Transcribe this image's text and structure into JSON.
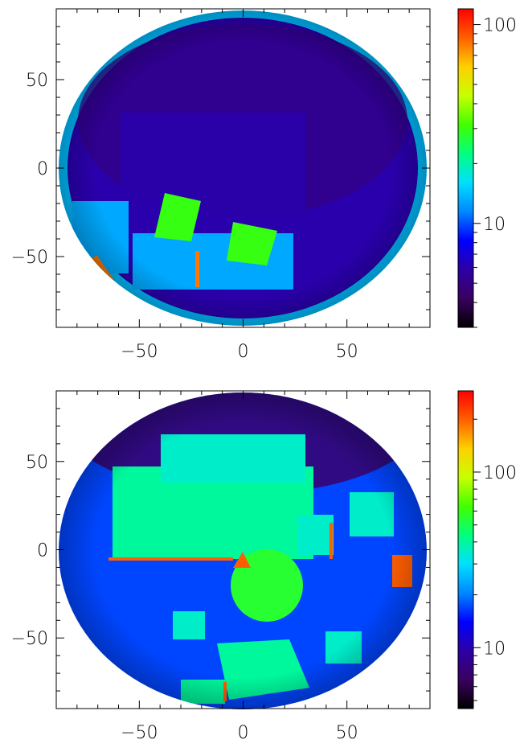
{
  "chart_data": [
    {
      "type": "heatmap",
      "description_of_content": "fisheye all-sky intensity map",
      "xlim": [
        -90,
        90
      ],
      "ylim": [
        -90,
        90
      ],
      "x_ticks": [
        -50,
        0,
        50
      ],
      "y_ticks": [
        50,
        0,
        -50
      ],
      "x_tick_labels": [
        "−50",
        "0",
        "50"
      ],
      "y_tick_labels": [
        "50",
        "0",
        "−50"
      ],
      "colorbar": {
        "scale": "log",
        "range": [
          3,
          120
        ],
        "ticks": [
          10,
          100
        ],
        "tick_labels": [
          "10",
          "100"
        ]
      },
      "colormap": [
        "#000000",
        "#3a0060",
        "#2d00a6",
        "#0000ff",
        "#0088ff",
        "#00e0ff",
        "#00ff80",
        "#40ff00",
        "#c8ff00",
        "#ffd000",
        "#ff6000",
        "#ff0000"
      ],
      "regions": {
        "disk_background": {
          "value": 6
        },
        "upper_dark_band": {
          "value": 5
        },
        "left_panel": {
          "value": 30
        },
        "right_panel": {
          "value": 30
        },
        "lower_clutter": {
          "value": 13
        },
        "rim": {
          "value": 14
        },
        "hot_spots": {
          "value": 80
        }
      }
    },
    {
      "type": "heatmap",
      "description_of_content": "fisheye all-sky intensity map",
      "xlim": [
        -90,
        90
      ],
      "ylim": [
        -90,
        90
      ],
      "x_ticks": [
        -50,
        0,
        50
      ],
      "y_ticks": [
        50,
        0,
        -50
      ],
      "x_tick_labels": [
        "−50",
        "0",
        "50"
      ],
      "y_tick_labels": [
        "50",
        "0",
        "−50"
      ],
      "colorbar": {
        "scale": "log",
        "range": [
          4.5,
          290
        ],
        "ticks": [
          10,
          100
        ],
        "tick_labels": [
          "10",
          "100"
        ]
      },
      "colormap": [
        "#000000",
        "#3a0060",
        "#2d00a6",
        "#0000ff",
        "#0088ff",
        "#00e0ff",
        "#00ff80",
        "#40ff00",
        "#c8ff00",
        "#ffd000",
        "#ff6000",
        "#ff0000"
      ],
      "regions": {
        "disk_background": {
          "value": 17
        },
        "upper_dark_band": {
          "value": 7
        },
        "central_area": {
          "value": 40
        },
        "central_disk": {
          "value": 55
        },
        "side_structures": {
          "value": 35
        },
        "hot_edges": {
          "value": 200
        }
      }
    }
  ]
}
